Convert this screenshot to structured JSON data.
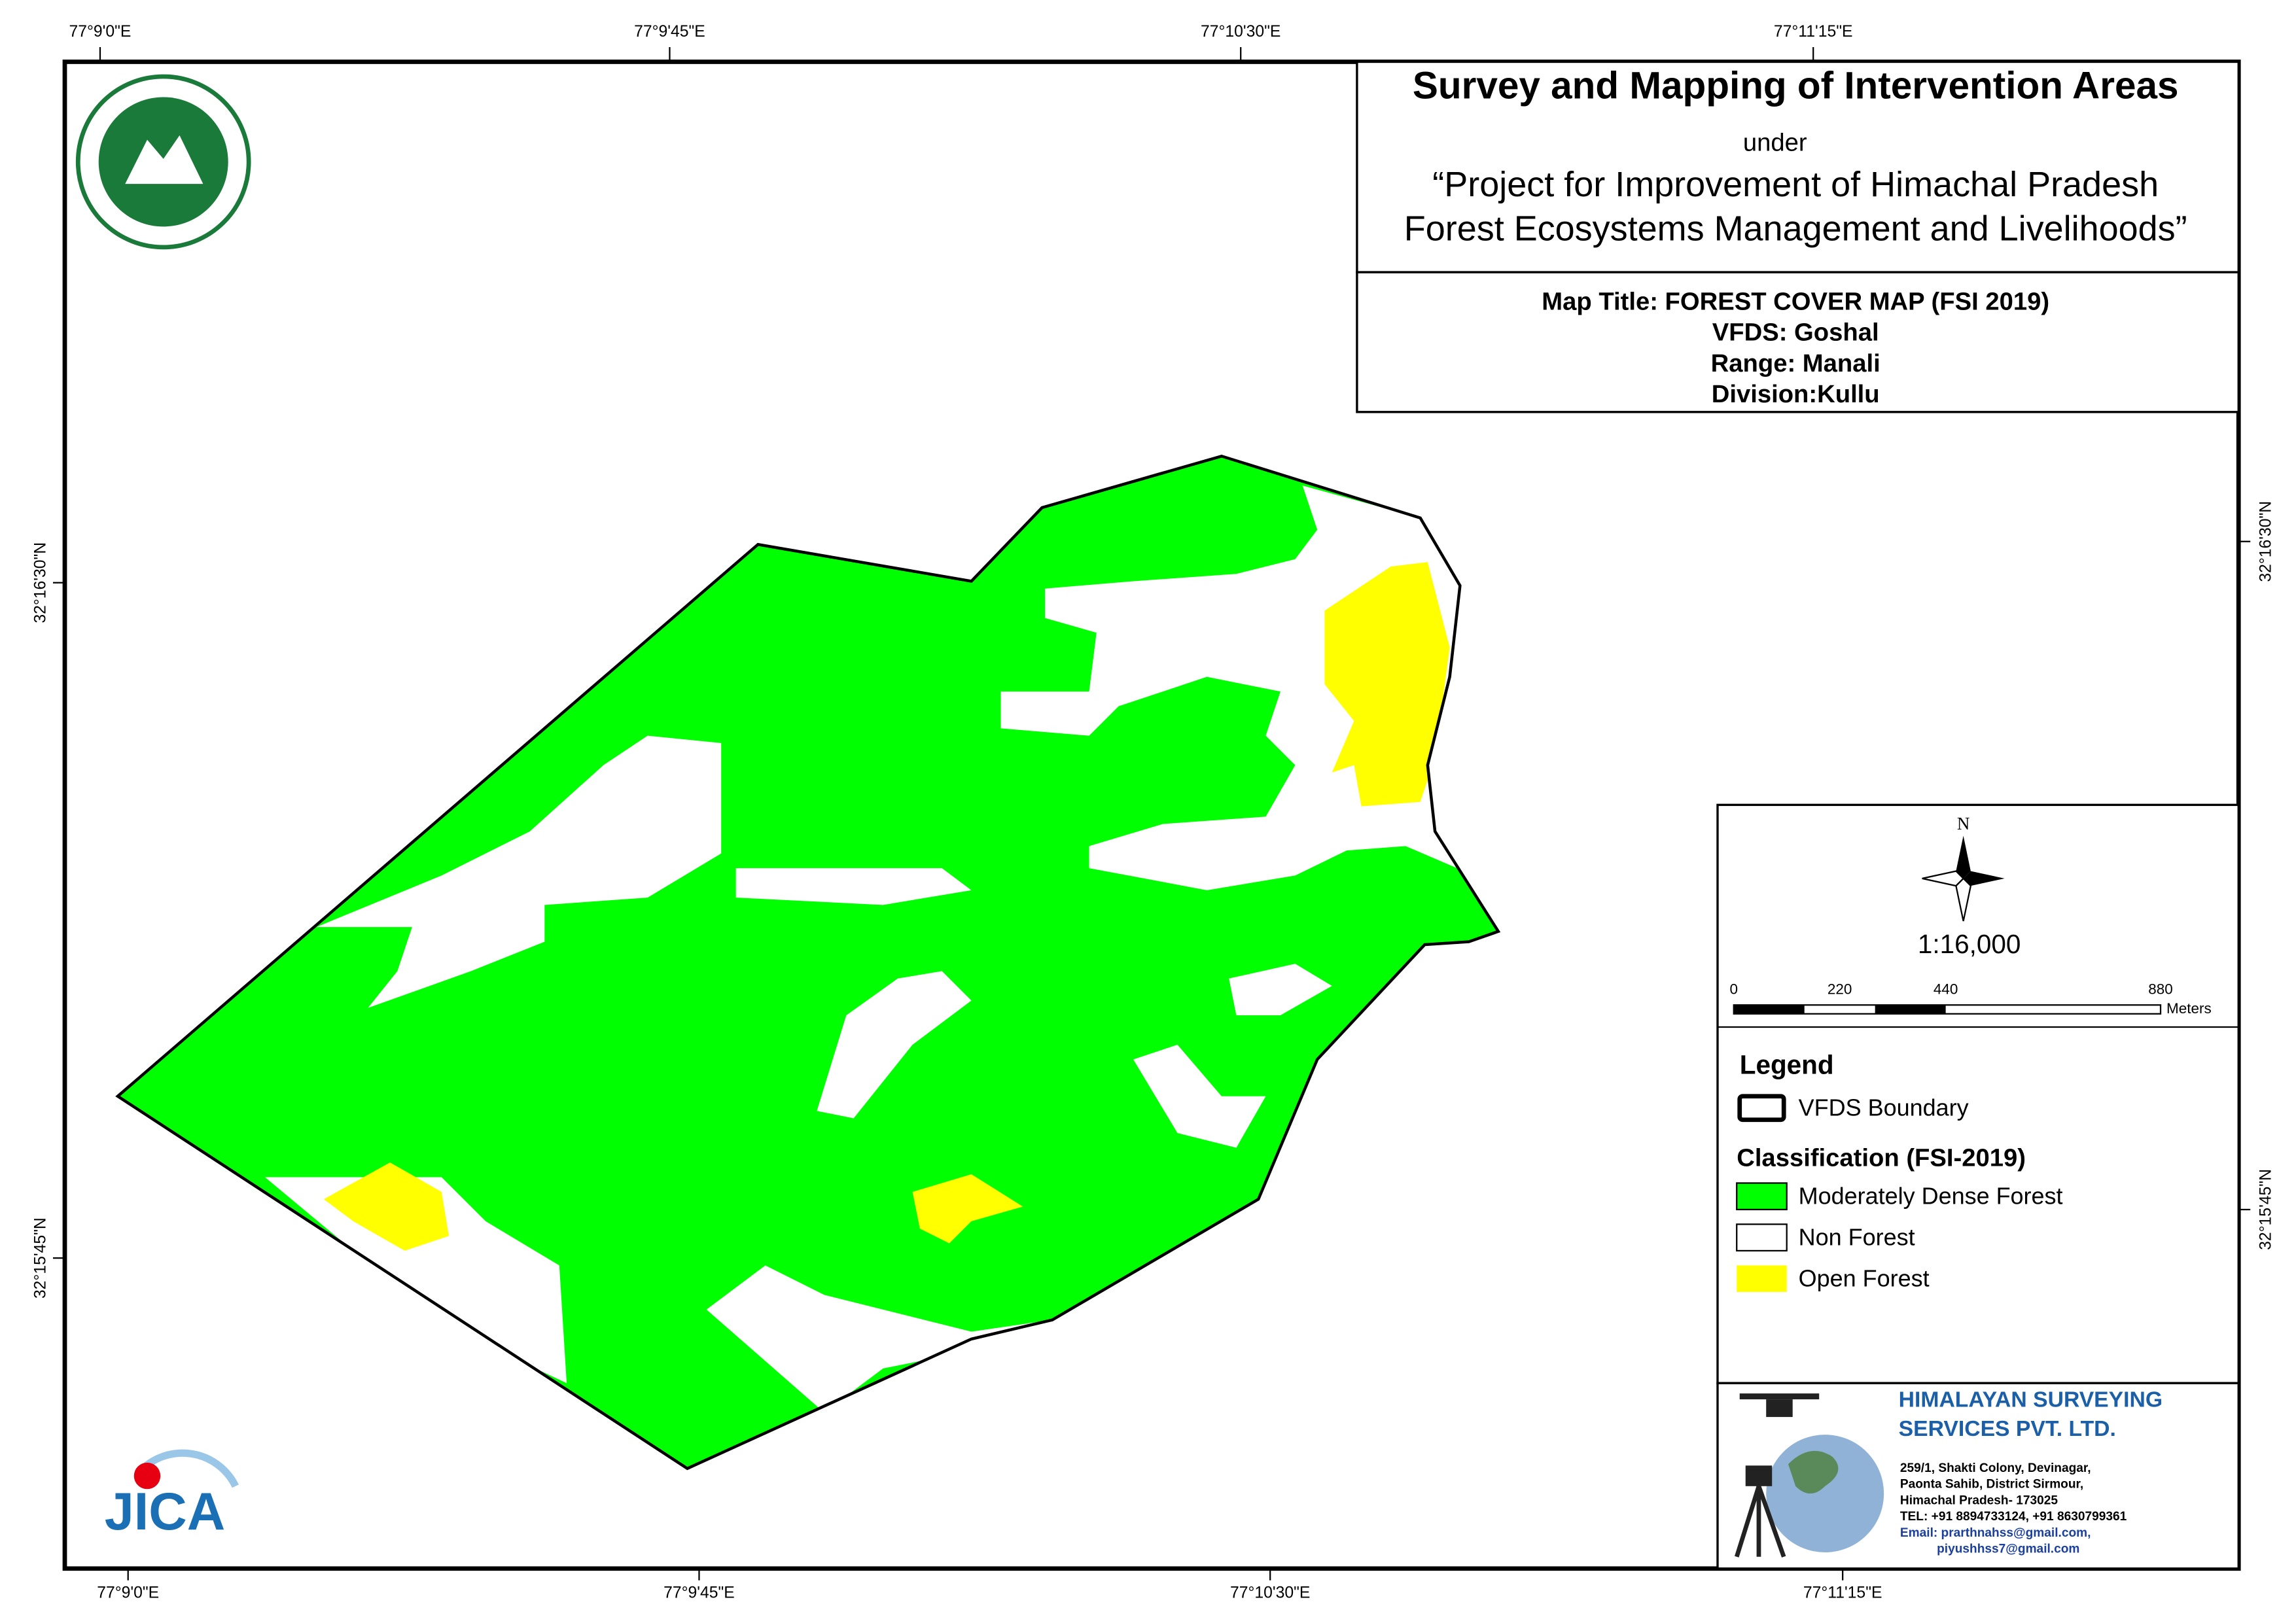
{
  "grid_labels": {
    "top": [
      "77°9'0\"E",
      "77°9'45\"E",
      "77°10'30\"E",
      "77°11'15\"E"
    ],
    "bottom": [
      "77°9'0\"E",
      "77°9'45\"E",
      "77°10'30\"E",
      "77°11'15\"E"
    ],
    "left": [
      "32°16'30\"N",
      "32°15'45\"N"
    ],
    "right": [
      "32°16'30\"N",
      "32°15'45\"N"
    ]
  },
  "title_block": {
    "title": "Survey and Mapping of Intervention Areas",
    "under": "under",
    "project_line1": "“Project for Improvement of Himachal Pradesh",
    "project_line2": "Forest Ecosystems Management and Livelihoods”"
  },
  "map_info": {
    "map_title": "Map Title: FOREST COVER MAP (FSI 2019)",
    "vfds": "VFDS: Goshal",
    "range": "Range: Manali",
    "division": "Division:Kullu"
  },
  "north_arrow": "N",
  "scale": {
    "ratio": "1:16,000",
    "bar_labels": [
      "0",
      "220",
      "440",
      "880"
    ],
    "unit": "Meters"
  },
  "legend": {
    "title": "Legend",
    "boundary": "VFDS Boundary",
    "classification_title": "Classification (FSI-2019)",
    "classes": [
      "Moderately Dense Forest",
      "Non Forest",
      "Open Forest"
    ]
  },
  "company": {
    "name_line1": "HIMALAYAN SURVEYING",
    "name_line2": "SERVICES PVT. LTD.",
    "address": [
      "259/1, Shakti Colony, Devinagar,",
      "Paonta Sahib, District Sirmour,",
      "Himachal Pradesh- 173025",
      "TEL: +91 8894733124, +91 8630799361",
      "Email: prarthnahss@gmail.com,",
      "piyushhss7@gmail.com"
    ]
  },
  "logos": {
    "jica": "JICA"
  }
}
